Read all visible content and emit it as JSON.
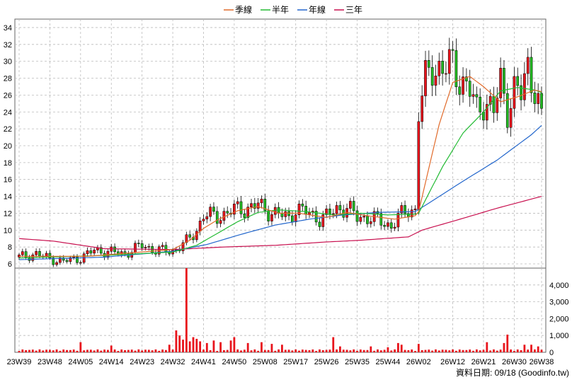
{
  "chart_data": {
    "type": "candlestick+line+bar",
    "legend": [
      {
        "name": "季線",
        "color": "#e06a2a"
      },
      {
        "name": "半年",
        "color": "#22bb33"
      },
      {
        "name": "年線",
        "color": "#2266cc"
      },
      {
        "name": "三年",
        "color": "#c8104f"
      }
    ],
    "price_axis": {
      "ylim": [
        5.5,
        35
      ],
      "ticks": [
        6,
        8,
        10,
        12,
        14,
        16,
        18,
        20,
        22,
        24,
        26,
        28,
        30,
        32,
        34
      ]
    },
    "volume_axis": {
      "ylim": [
        0,
        5000
      ],
      "ticks": [
        "0",
        "1,000",
        "2,000",
        "3,000",
        "4,000"
      ]
    },
    "x_ticks": [
      "23W39",
      "23W48",
      "24W05",
      "24W14",
      "24W23",
      "24W32",
      "24W41",
      "24W50",
      "25W08",
      "25W17",
      "25W26",
      "25W35",
      "25W44",
      "26W02",
      "26W12",
      "26W21",
      "26W30",
      "26W38"
    ],
    "x_tick_index": [
      0,
      9,
      18,
      27,
      36,
      45,
      54,
      63,
      72,
      81,
      90,
      99,
      108,
      117,
      127,
      136,
      145,
      153
    ],
    "colors": {
      "up": "#e8141c",
      "down": "#22bb22",
      "volume": "#e8141c",
      "grid": "#bbbbbb",
      "frame": "#666666"
    },
    "close_keypoints": [
      [
        0,
        6.8
      ],
      [
        5,
        7.2
      ],
      [
        9,
        6.6
      ],
      [
        13,
        6.3
      ],
      [
        18,
        6.7
      ],
      [
        22,
        7.6
      ],
      [
        27,
        7.4
      ],
      [
        31,
        7.2
      ],
      [
        36,
        8.2
      ],
      [
        40,
        7.6
      ],
      [
        45,
        7.5
      ],
      [
        49,
        8.6
      ],
      [
        52,
        10.0
      ],
      [
        54,
        11.8
      ],
      [
        58,
        11.6
      ],
      [
        63,
        12.4
      ],
      [
        67,
        12.6
      ],
      [
        70,
        13.0
      ],
      [
        72,
        12.4
      ],
      [
        76,
        11.9
      ],
      [
        79,
        11.4
      ],
      [
        81,
        12.6
      ],
      [
        84,
        12.1
      ],
      [
        88,
        11.4
      ],
      [
        90,
        11.6
      ],
      [
        93,
        12.5
      ],
      [
        96,
        12.7
      ],
      [
        99,
        11.5
      ],
      [
        103,
        11.5
      ],
      [
        106,
        11.0
      ],
      [
        109,
        10.5
      ],
      [
        111,
        11.5
      ],
      [
        114,
        12.4
      ],
      [
        116,
        12.4
      ],
      [
        117,
        24.0
      ],
      [
        119,
        27.5
      ],
      [
        121,
        29.5
      ],
      [
        124,
        29.0
      ],
      [
        127,
        29.5
      ],
      [
        130,
        27.5
      ],
      [
        132,
        26.5
      ],
      [
        134,
        24.0
      ],
      [
        136,
        25.5
      ],
      [
        139,
        24.0
      ],
      [
        141,
        27.5
      ],
      [
        143,
        24.5
      ],
      [
        145,
        26.5
      ],
      [
        147,
        26.0
      ],
      [
        149,
        29.5
      ],
      [
        151,
        27.0
      ],
      [
        152,
        25.0
      ],
      [
        153,
        22.8
      ]
    ],
    "ma_quarter_keypoints": [
      [
        0,
        6.9
      ],
      [
        20,
        6.9
      ],
      [
        45,
        7.7
      ],
      [
        50,
        8.8
      ],
      [
        54,
        10.2
      ],
      [
        58,
        11.2
      ],
      [
        64,
        12.3
      ],
      [
        70,
        12.8
      ],
      [
        76,
        12.0
      ],
      [
        82,
        12.0
      ],
      [
        90,
        11.5
      ],
      [
        96,
        12.1
      ],
      [
        102,
        11.7
      ],
      [
        110,
        11.3
      ],
      [
        116,
        11.7
      ],
      [
        117,
        12.2
      ],
      [
        123,
        22.5
      ],
      [
        127,
        27.5
      ],
      [
        132,
        28.2
      ],
      [
        136,
        27.0
      ],
      [
        141,
        25.2
      ],
      [
        146,
        25.8
      ],
      [
        151,
        26.6
      ],
      [
        153,
        26.4
      ]
    ],
    "ma_half_keypoints": [
      [
        0,
        6.7
      ],
      [
        25,
        7.0
      ],
      [
        45,
        7.4
      ],
      [
        52,
        8.2
      ],
      [
        58,
        9.6
      ],
      [
        64,
        11.0
      ],
      [
        70,
        12.1
      ],
      [
        76,
        12.4
      ],
      [
        84,
        12.2
      ],
      [
        92,
        11.8
      ],
      [
        100,
        12.0
      ],
      [
        108,
        11.8
      ],
      [
        116,
        11.9
      ],
      [
        117,
        12.0
      ],
      [
        124,
        17.5
      ],
      [
        130,
        21.5
      ],
      [
        136,
        24.0
      ],
      [
        141,
        26.5
      ],
      [
        146,
        26.9
      ],
      [
        151,
        26.6
      ],
      [
        153,
        26.3
      ]
    ],
    "ma_year_keypoints": [
      [
        0,
        6.5
      ],
      [
        25,
        6.8
      ],
      [
        45,
        7.5
      ],
      [
        55,
        8.3
      ],
      [
        65,
        9.5
      ],
      [
        75,
        10.6
      ],
      [
        85,
        11.3
      ],
      [
        95,
        11.8
      ],
      [
        105,
        12.1
      ],
      [
        116,
        12.2
      ],
      [
        120,
        13.2
      ],
      [
        130,
        15.8
      ],
      [
        140,
        18.3
      ],
      [
        150,
        21.3
      ],
      [
        153,
        22.4
      ]
    ],
    "ma_3year_keypoints": [
      [
        0,
        9.0
      ],
      [
        10,
        8.7
      ],
      [
        25,
        7.8
      ],
      [
        45,
        7.7
      ],
      [
        60,
        8.0
      ],
      [
        75,
        8.2
      ],
      [
        90,
        8.6
      ],
      [
        100,
        8.8
      ],
      [
        114,
        9.2
      ],
      [
        118,
        10.0
      ],
      [
        130,
        11.4
      ],
      [
        140,
        12.6
      ],
      [
        153,
        14.0
      ]
    ],
    "volume_spikes": [
      [
        18,
        600
      ],
      [
        27,
        400
      ],
      [
        44,
        450
      ],
      [
        46,
        1300
      ],
      [
        47,
        1000
      ],
      [
        48,
        750
      ],
      [
        49,
        5100
      ],
      [
        50,
        650
      ],
      [
        51,
        900
      ],
      [
        52,
        800
      ],
      [
        53,
        650
      ],
      [
        55,
        550
      ],
      [
        57,
        700
      ],
      [
        59,
        600
      ],
      [
        62,
        700
      ],
      [
        63,
        900
      ],
      [
        67,
        550
      ],
      [
        71,
        600
      ],
      [
        74,
        500
      ],
      [
        77,
        450
      ],
      [
        92,
        900
      ],
      [
        94,
        350
      ],
      [
        103,
        350
      ],
      [
        108,
        300
      ],
      [
        111,
        550
      ],
      [
        112,
        450
      ],
      [
        117,
        500
      ],
      [
        137,
        600
      ],
      [
        142,
        550
      ],
      [
        143,
        1050
      ],
      [
        148,
        450
      ],
      [
        150,
        450
      ],
      [
        152,
        350
      ]
    ],
    "source_label": "資料日期: 09/18 (Goodinfo.tw)"
  }
}
